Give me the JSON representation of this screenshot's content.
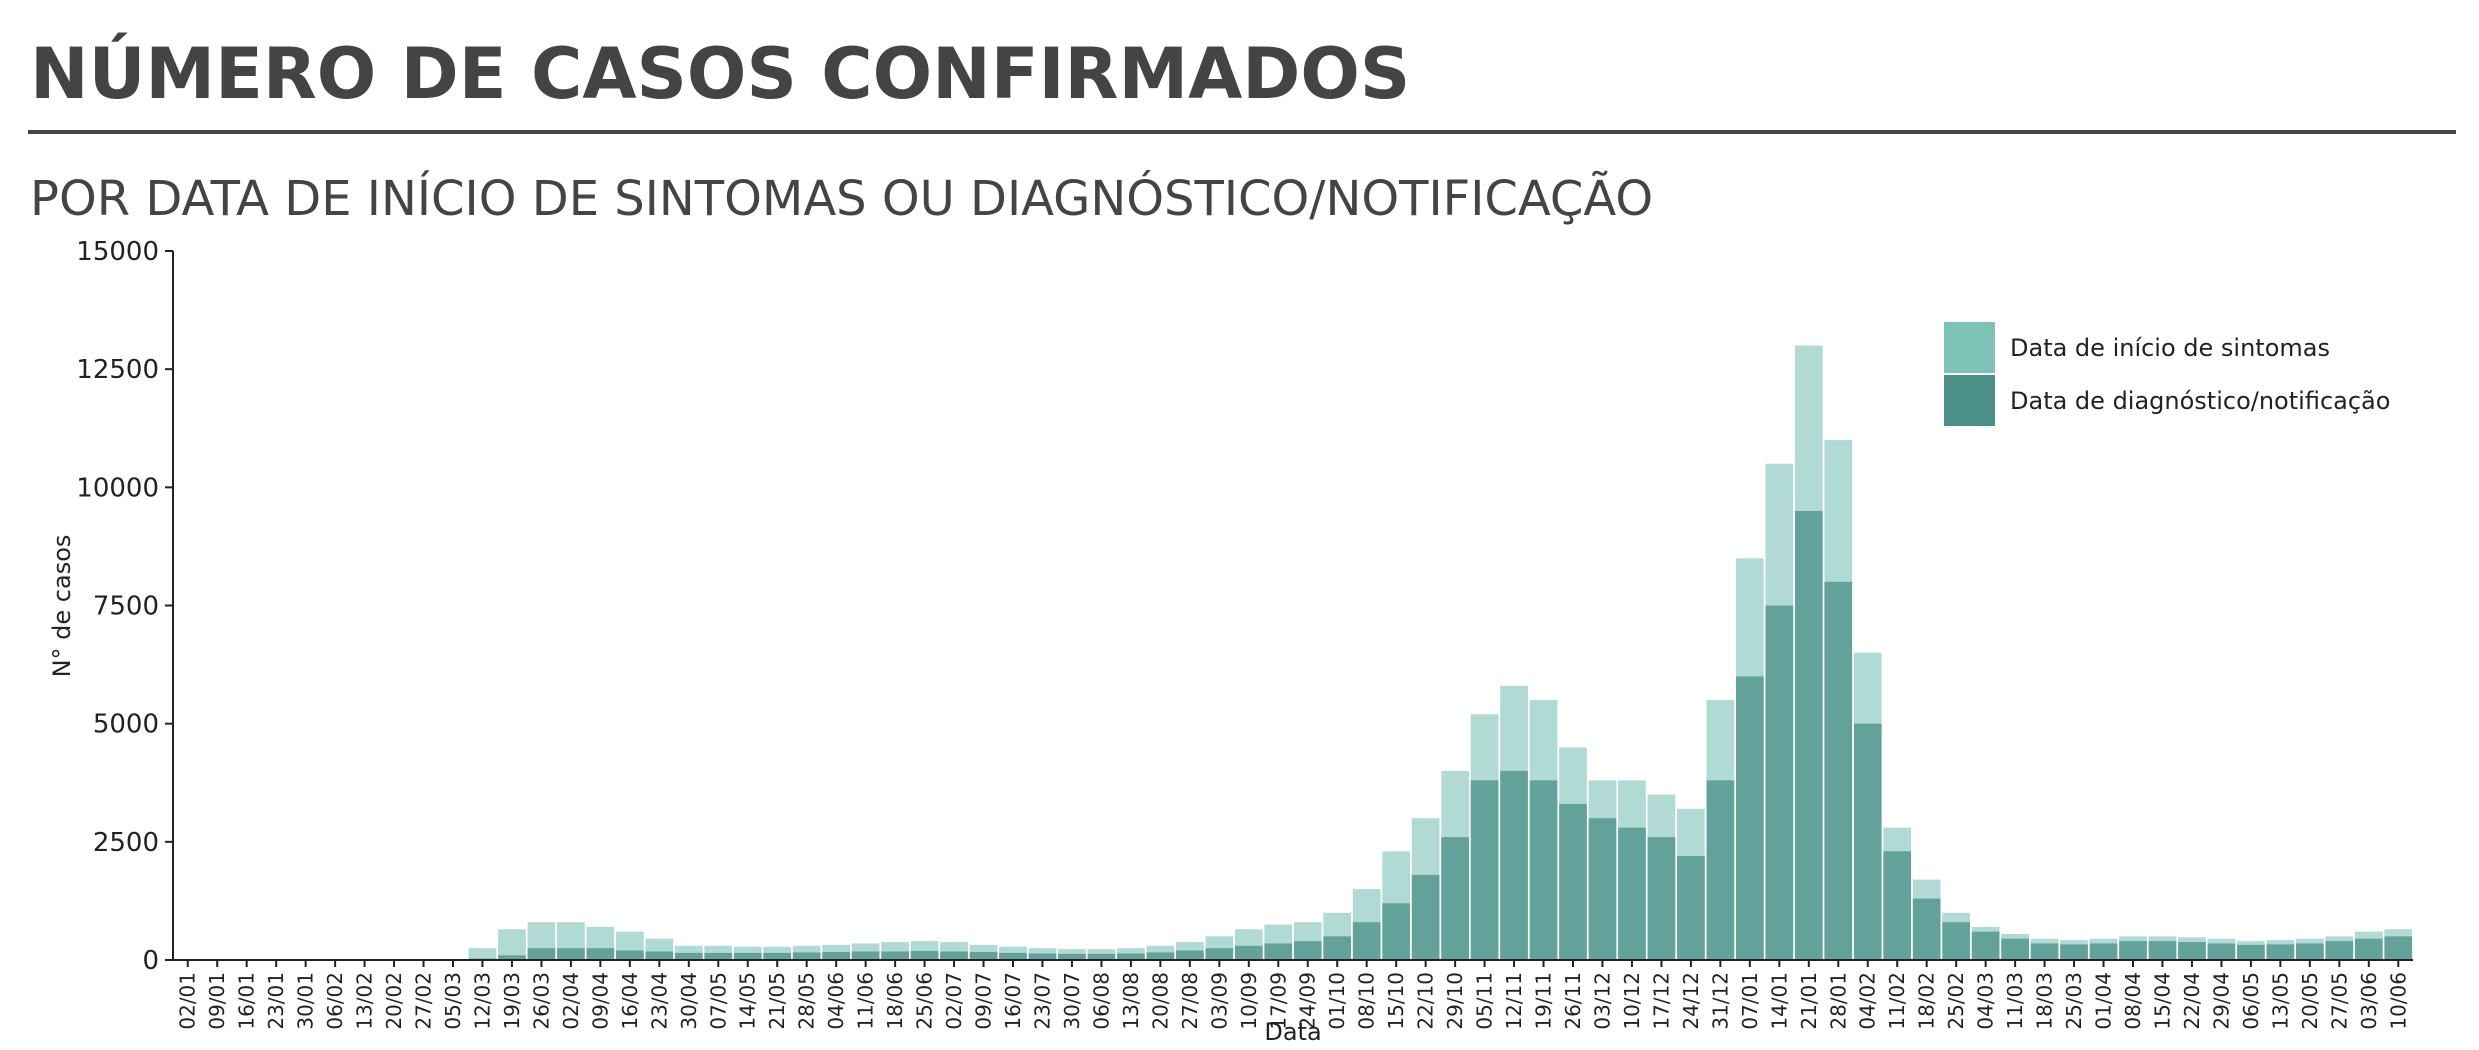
{
  "chart_data": {
    "type": "bar",
    "title": "NÚMERO DE CASOS CONFIRMADOS",
    "subtitle": "POR DATA DE INÍCIO DE SINTOMAS OU DIAGNÓSTICO/NOTIFICAÇÃO",
    "xlabel": "Data",
    "ylabel": "N° de casos",
    "categories": [
      "02/01",
      "09/01",
      "16/01",
      "23/01",
      "30/01",
      "06/02",
      "13/02",
      "20/02",
      "27/02",
      "05/03",
      "12/03",
      "19/03",
      "26/03",
      "02/04",
      "09/04",
      "16/04",
      "23/04",
      "30/04",
      "07/05",
      "14/05",
      "21/05",
      "28/05",
      "04/06",
      "11/06",
      "18/06",
      "25/06",
      "02/07",
      "09/07",
      "16/07",
      "23/07",
      "30/07",
      "06/08",
      "13/08",
      "20/08",
      "27/08",
      "03/09",
      "10/09",
      "17/09",
      "24/09",
      "01/10",
      "08/10",
      "15/10",
      "22/10",
      "29/10",
      "05/11",
      "12/11",
      "19/11",
      "26/11",
      "03/12",
      "10/12",
      "17/12",
      "24/12",
      "31/12",
      "07/01",
      "14/01",
      "21/01",
      "28/01",
      "04/02",
      "11/02",
      "18/02",
      "25/02",
      "04/03",
      "11/03",
      "18/03",
      "25/03",
      "01/04",
      "08/04",
      "15/04",
      "22/04",
      "29/04",
      "06/05",
      "13/05",
      "20/05",
      "27/05",
      "03/06",
      "10/06"
    ],
    "series": [
      {
        "name": "Data de início de sintomas",
        "color": "#7cc2b5",
        "values": [
          0,
          0,
          0,
          0,
          0,
          0,
          0,
          0,
          0,
          20,
          250,
          650,
          800,
          800,
          700,
          600,
          450,
          300,
          300,
          280,
          280,
          300,
          320,
          350,
          380,
          400,
          380,
          320,
          280,
          250,
          230,
          230,
          250,
          300,
          380,
          500,
          650,
          750,
          800,
          1000,
          1500,
          2300,
          3000,
          4000,
          5200,
          5800,
          5500,
          4500,
          3800,
          3800,
          3500,
          3200,
          5500,
          8500,
          10500,
          13000,
          11000,
          6500,
          2800,
          1700,
          1000,
          700,
          550,
          450,
          420,
          450,
          500,
          500,
          480,
          450,
          400,
          420,
          450,
          500,
          600,
          650
        ]
      },
      {
        "name": "Data de diagnóstico/notificação",
        "color": "#4a8f88",
        "values": [
          0,
          0,
          0,
          0,
          0,
          0,
          0,
          0,
          0,
          0,
          30,
          100,
          250,
          250,
          250,
          200,
          180,
          150,
          150,
          150,
          150,
          160,
          170,
          180,
          180,
          190,
          180,
          170,
          150,
          140,
          130,
          130,
          140,
          160,
          200,
          250,
          300,
          350,
          400,
          500,
          800,
          1200,
          1800,
          2600,
          3800,
          4000,
          3800,
          3300,
          3000,
          2800,
          2600,
          2200,
          3800,
          6000,
          7500,
          9500,
          8000,
          5000,
          2300,
          1300,
          800,
          600,
          450,
          350,
          330,
          350,
          400,
          400,
          380,
          350,
          320,
          330,
          350,
          400,
          450,
          500
        ]
      }
    ],
    "ylim": [
      0,
      15000
    ],
    "yticks": [
      0,
      2500,
      5000,
      7500,
      10000,
      12500,
      15000
    ],
    "grid": false,
    "legend": "upper right"
  }
}
